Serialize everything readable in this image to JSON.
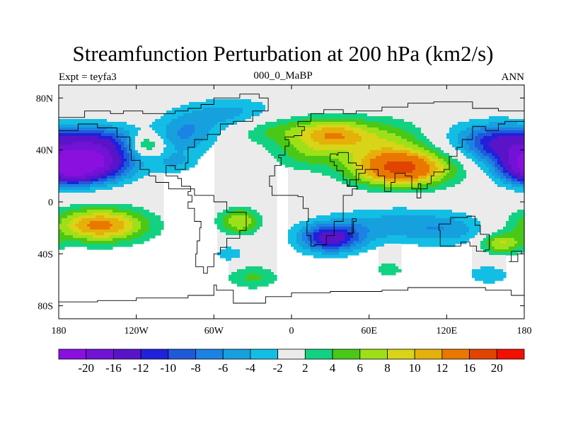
{
  "chart_data": {
    "type": "heatmap",
    "title": "Streamfunction Perturbation at 200 hPa (km2/s)",
    "left_label": "Expt = teyfa3",
    "center_label": "000_0_MaBP",
    "right_label": "ANN",
    "x_range": [
      -180,
      180
    ],
    "y_range": [
      -90,
      90
    ],
    "x_ticks": [
      {
        "value": -180,
        "label": "180"
      },
      {
        "value": -120,
        "label": "120W"
      },
      {
        "value": -60,
        "label": "60W"
      },
      {
        "value": 0,
        "label": "0"
      },
      {
        "value": 60,
        "label": "60E"
      },
      {
        "value": 120,
        "label": "120E"
      },
      {
        "value": 180,
        "label": "180"
      }
    ],
    "y_ticks": [
      {
        "value": 80,
        "label": "80N"
      },
      {
        "value": 40,
        "label": "40N"
      },
      {
        "value": 0,
        "label": "0"
      },
      {
        "value": -40,
        "label": "40S"
      },
      {
        "value": -80,
        "label": "80S"
      }
    ],
    "colorbar": {
      "colors": [
        "#8a10e0",
        "#7212d6",
        "#5a14c8",
        "#2020dc",
        "#1e5ad8",
        "#1c82e4",
        "#16a0de",
        "#12bee4",
        "#ebebeb",
        "#12d282",
        "#4ac818",
        "#9ee018",
        "#d8d418",
        "#e6b00a",
        "#ea7800",
        "#e04400",
        "#f21000"
      ],
      "labels": [
        "-20",
        "-16",
        "-12",
        "-10",
        "-8",
        "-6",
        "-4",
        "-2",
        "2",
        "4",
        "6",
        "8",
        "10",
        "12",
        "16",
        "20"
      ]
    },
    "blobs": [
      {
        "lon": -160,
        "lat": 30,
        "rlon": 34,
        "rlat": 14,
        "amp": -22
      },
      {
        "lon": -150,
        "lat": 48,
        "rlon": 30,
        "rlat": 12,
        "amp": -9
      },
      {
        "lon": -112,
        "lat": 44,
        "rlon": 12,
        "rlat": 8,
        "amp": 7
      },
      {
        "lon": -82,
        "lat": 52,
        "rlon": 24,
        "rlat": 16,
        "amp": -6
      },
      {
        "lon": -45,
        "lat": 68,
        "rlon": 36,
        "rlat": 12,
        "amp": -5
      },
      {
        "lon": -90,
        "lat": 30,
        "rlon": 16,
        "rlat": 8,
        "amp": -3.5
      },
      {
        "lon": -15,
        "lat": 56,
        "rlon": 30,
        "rlat": 12,
        "amp": 4.5
      },
      {
        "lon": 10,
        "lat": 36,
        "rlon": 26,
        "rlat": 12,
        "amp": 4
      },
      {
        "lon": 30,
        "lat": 52,
        "rlon": 28,
        "rlat": 12,
        "amp": 9
      },
      {
        "lon": 85,
        "lat": 26,
        "rlon": 38,
        "rlat": 14,
        "amp": 17
      },
      {
        "lon": 70,
        "lat": 48,
        "rlon": 44,
        "rlat": 16,
        "amp": 6
      },
      {
        "lon": 125,
        "lat": 48,
        "rlon": 30,
        "rlat": 16,
        "amp": -3
      },
      {
        "lon": 162,
        "lat": 46,
        "rlon": 28,
        "rlat": 14,
        "amp": -11
      },
      {
        "lon": 185,
        "lat": 24,
        "rlon": 22,
        "rlat": 12,
        "amp": -8
      },
      {
        "lon": -148,
        "lat": -18,
        "rlon": 36,
        "rlat": 13,
        "amp": 13
      },
      {
        "lon": -40,
        "lat": -15,
        "rlon": 16,
        "rlat": 10,
        "amp": 8
      },
      {
        "lon": -48,
        "lat": -40,
        "rlon": 14,
        "rlat": 8,
        "amp": -3
      },
      {
        "lon": 30,
        "lat": -28,
        "rlon": 24,
        "rlat": 11,
        "amp": -13
      },
      {
        "lon": 80,
        "lat": -18,
        "rlon": 50,
        "rlat": 14,
        "amp": -5
      },
      {
        "lon": 125,
        "lat": -22,
        "rlon": 30,
        "rlat": 12,
        "amp": -3.5
      },
      {
        "lon": 162,
        "lat": -32,
        "rlon": 16,
        "rlat": 8,
        "amp": 8
      },
      {
        "lon": 152,
        "lat": -56,
        "rlon": 18,
        "rlat": 8,
        "amp": -3.5
      },
      {
        "lon": -30,
        "lat": -58,
        "rlon": 20,
        "rlat": 9,
        "amp": 4.5
      },
      {
        "lon": 75,
        "lat": -52,
        "rlon": 12,
        "rlat": 6,
        "amp": 3.5
      }
    ],
    "coastlines": [
      [
        [
          -180,
          65
        ],
        [
          -165,
          65
        ],
        [
          -160,
          70
        ],
        [
          -150,
          70
        ],
        [
          -140,
          68
        ],
        [
          -130,
          70
        ],
        [
          -115,
          68
        ],
        [
          -100,
          68
        ],
        [
          -90,
          70
        ],
        [
          -80,
          72
        ],
        [
          -70,
          75
        ],
        [
          -60,
          80
        ],
        [
          -40,
          83
        ],
        [
          -25,
          80
        ],
        [
          -18,
          70
        ],
        [
          -30,
          62
        ],
        [
          -45,
          60
        ],
        [
          -55,
          52
        ],
        [
          -65,
          48
        ],
        [
          -75,
          42
        ],
        [
          -80,
          30
        ],
        [
          -82,
          25
        ],
        [
          -90,
          28
        ],
        [
          -97,
          26
        ],
        [
          -97,
          20
        ],
        [
          -88,
          18
        ],
        [
          -85,
          12
        ],
        [
          -78,
          8
        ],
        [
          -80,
          5
        ],
        [
          -77,
          0
        ],
        [
          -80,
          -5
        ],
        [
          -75,
          -15
        ],
        [
          -70,
          -20
        ],
        [
          -71,
          -30
        ],
        [
          -73,
          -40
        ],
        [
          -74,
          -50
        ],
        [
          -68,
          -55
        ],
        [
          -65,
          -50
        ],
        [
          -60,
          -40
        ],
        [
          -55,
          -35
        ],
        [
          -50,
          -28
        ],
        [
          -40,
          -22
        ],
        [
          -35,
          -8
        ],
        [
          -50,
          0
        ],
        [
          -60,
          5
        ],
        [
          -75,
          10
        ],
        [
          -85,
          10
        ],
        [
          -95,
          15
        ],
        [
          -105,
          20
        ],
        [
          -110,
          25
        ],
        [
          -117,
          32
        ],
        [
          -124,
          40
        ],
        [
          -125,
          50
        ],
        [
          -135,
          57
        ],
        [
          -150,
          60
        ],
        [
          -165,
          55
        ],
        [
          -180,
          60
        ]
      ],
      [
        [
          -10,
          36
        ],
        [
          -5,
          43
        ],
        [
          -2,
          48
        ],
        [
          -5,
          50
        ],
        [
          2,
          51
        ],
        [
          8,
          55
        ],
        [
          10,
          58
        ],
        [
          5,
          62
        ],
        [
          15,
          68
        ],
        [
          25,
          71
        ],
        [
          40,
          68
        ],
        [
          50,
          70
        ],
        [
          70,
          73
        ],
        [
          90,
          76
        ],
        [
          110,
          77
        ],
        [
          140,
          72
        ],
        [
          160,
          70
        ],
        [
          180,
          68
        ]
      ],
      [
        [
          180,
          62
        ],
        [
          165,
          60
        ],
        [
          160,
          55
        ],
        [
          150,
          58
        ],
        [
          140,
          54
        ],
        [
          140,
          48
        ],
        [
          132,
          42
        ],
        [
          128,
          35
        ],
        [
          122,
          31
        ],
        [
          122,
          25
        ],
        [
          118,
          23
        ],
        [
          110,
          20
        ],
        [
          108,
          14
        ],
        [
          105,
          10
        ],
        [
          100,
          14
        ],
        [
          98,
          10
        ],
        [
          100,
          3
        ],
        [
          97,
          10
        ],
        [
          93,
          20
        ],
        [
          88,
          22
        ],
        [
          80,
          15
        ],
        [
          77,
          8
        ],
        [
          72,
          20
        ],
        [
          67,
          25
        ],
        [
          58,
          25
        ],
        [
          57,
          22
        ],
        [
          52,
          17
        ],
        [
          45,
          13
        ],
        [
          43,
          12
        ],
        [
          50,
          12
        ],
        [
          51,
          10
        ],
        [
          47,
          5
        ],
        [
          40,
          -3
        ],
        [
          40,
          -15
        ],
        [
          33,
          -26
        ],
        [
          27,
          -33
        ],
        [
          18,
          -34
        ],
        [
          15,
          -26
        ],
        [
          12,
          -15
        ],
        [
          13,
          -5
        ],
        [
          9,
          4
        ],
        [
          5,
          5
        ],
        [
          -8,
          5
        ],
        [
          -15,
          12
        ],
        [
          -17,
          20
        ],
        [
          -13,
          28
        ],
        [
          -8,
          34
        ],
        [
          -10,
          36
        ]
      ],
      [
        [
          35,
          37
        ],
        [
          30,
          31
        ],
        [
          33,
          28
        ],
        [
          35,
          24
        ],
        [
          40,
          17
        ],
        [
          43,
          12
        ],
        [
          50,
          25
        ],
        [
          55,
          28
        ],
        [
          50,
          30
        ],
        [
          44,
          38
        ],
        [
          36,
          36
        ],
        [
          35,
          37
        ]
      ],
      [
        [
          114,
          -22
        ],
        [
          115,
          -34
        ],
        [
          123,
          -34
        ],
        [
          131,
          -31
        ],
        [
          138,
          -34
        ],
        [
          143,
          -38
        ],
        [
          150,
          -37
        ],
        [
          153,
          -28
        ],
        [
          153,
          -25
        ],
        [
          146,
          -18
        ],
        [
          142,
          -11
        ],
        [
          136,
          -12
        ],
        [
          130,
          -12
        ],
        [
          123,
          -17
        ],
        [
          114,
          -22
        ]
      ],
      [
        [
          44,
          -25
        ],
        [
          47,
          -13
        ],
        [
          50,
          -15
        ],
        [
          48,
          -24
        ],
        [
          44,
          -25
        ]
      ],
      [
        [
          170,
          -38
        ],
        [
          178,
          -40
        ],
        [
          175,
          -46
        ],
        [
          168,
          -46
        ],
        [
          170,
          -38
        ]
      ],
      [
        [
          -180,
          -77
        ],
        [
          -150,
          -76
        ],
        [
          -120,
          -74
        ],
        [
          -80,
          -72
        ],
        [
          -60,
          -64
        ],
        [
          -58,
          -68
        ],
        [
          -45,
          -78
        ],
        [
          -20,
          -73
        ],
        [
          0,
          -70
        ],
        [
          30,
          -69
        ],
        [
          70,
          -68
        ],
        [
          90,
          -66
        ],
        [
          120,
          -66
        ],
        [
          150,
          -68
        ],
        [
          170,
          -72
        ],
        [
          180,
          -75
        ]
      ]
    ]
  }
}
